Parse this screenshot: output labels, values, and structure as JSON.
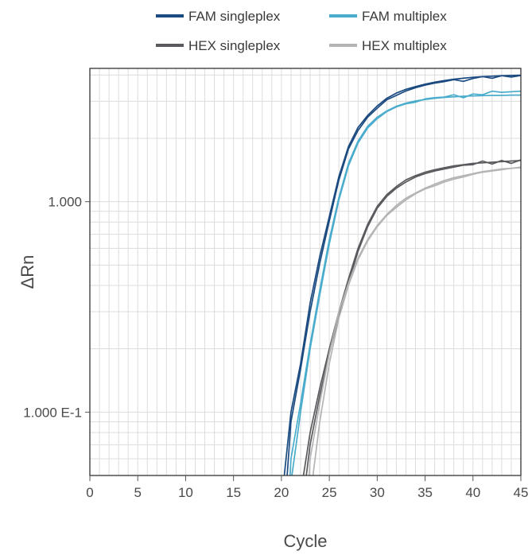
{
  "chart_data": {
    "type": "line",
    "title": "",
    "xlabel": "Cycle",
    "ylabel": "ΔRn",
    "x_scale": "linear",
    "y_scale": "log",
    "xlim": [
      0,
      45
    ],
    "ylim": [
      0.05,
      4.3
    ],
    "x_ticks": [
      0,
      5,
      10,
      15,
      20,
      25,
      30,
      35,
      40,
      45
    ],
    "y_ticks": [
      0.1,
      1.0
    ],
    "y_tick_labels": [
      "1.000 E-1",
      "1.000"
    ],
    "grid": true,
    "legend_position": "top",
    "series": [
      {
        "name": "FAM singleplex",
        "color": "#1a4a80",
        "replicates": [
          {
            "x": [
              20.3,
              21,
              22,
              23,
              24,
              25,
              26,
              27,
              28,
              29,
              30,
              31,
              32,
              33,
              34,
              35,
              36,
              37,
              38,
              39,
              40,
              41,
              42,
              43,
              44,
              45
            ],
            "y": [
              0.05,
              0.1,
              0.17,
              0.33,
              0.55,
              0.85,
              1.32,
              1.83,
              2.25,
              2.57,
              2.85,
              3.1,
              3.28,
              3.42,
              3.52,
              3.62,
              3.7,
              3.76,
              3.82,
              3.86,
              3.9,
              3.93,
              3.95,
              3.97,
              3.98,
              3.99
            ]
          },
          {
            "x": [
              20.6,
              21,
              22,
              23,
              24,
              25,
              26,
              27,
              28,
              29,
              30,
              31,
              32,
              33,
              34,
              35,
              36,
              37,
              38,
              39,
              40,
              41,
              42,
              43,
              44,
              45
            ],
            "y": [
              0.05,
              0.09,
              0.16,
              0.3,
              0.51,
              0.81,
              1.27,
              1.78,
              2.18,
              2.52,
              2.78,
              3.05,
              3.2,
              3.36,
              3.48,
              3.58,
              3.66,
              3.72,
              3.8,
              3.73,
              3.85,
              3.93,
              3.86,
              3.97,
              3.91,
              3.98
            ]
          }
        ]
      },
      {
        "name": "FAM multiplex",
        "color": "#4aaccc",
        "replicates": [
          {
            "x": [
              20.9,
              21,
              22,
              23,
              24,
              25,
              26,
              27,
              28,
              29,
              30,
              31,
              32,
              33,
              34,
              35,
              36,
              37,
              38,
              39,
              40,
              41,
              42,
              43,
              44,
              45
            ],
            "y": [
              0.05,
              0.06,
              0.11,
              0.21,
              0.38,
              0.66,
              1.05,
              1.52,
              1.94,
              2.28,
              2.52,
              2.7,
              2.84,
              2.94,
              3.01,
              3.06,
              3.1,
              3.13,
              3.15,
              3.17,
              3.18,
              3.19,
              3.2,
              3.2,
              3.21,
              3.21
            ]
          },
          {
            "x": [
              21.1,
              22,
              23,
              24,
              25,
              26,
              27,
              28,
              29,
              30,
              31,
              32,
              33,
              34,
              35,
              36,
              37,
              38,
              39,
              40,
              41,
              42,
              43,
              44,
              45
            ],
            "y": [
              0.05,
              0.1,
              0.2,
              0.36,
              0.63,
              1.02,
              1.48,
              1.9,
              2.24,
              2.48,
              2.68,
              2.82,
              2.92,
              2.97,
              3.08,
              3.12,
              3.14,
              3.22,
              3.12,
              3.25,
              3.22,
              3.35,
              3.31,
              3.33,
              3.35
            ]
          }
        ]
      },
      {
        "name": "HEX singleplex",
        "color": "#5a5a5e",
        "replicates": [
          {
            "x": [
              22.3,
              23,
              24,
              25,
              26,
              27,
              28,
              29,
              30,
              31,
              32,
              33,
              34,
              35,
              36,
              37,
              38,
              39,
              40,
              41,
              42,
              43,
              44,
              45
            ],
            "y": [
              0.05,
              0.08,
              0.13,
              0.2,
              0.3,
              0.43,
              0.6,
              0.78,
              0.95,
              1.08,
              1.18,
              1.27,
              1.33,
              1.38,
              1.42,
              1.45,
              1.48,
              1.5,
              1.52,
              1.53,
              1.54,
              1.55,
              1.56,
              1.57
            ]
          },
          {
            "x": [
              22.6,
              23,
              24,
              25,
              26,
              27,
              28,
              29,
              30,
              31,
              32,
              33,
              34,
              35,
              36,
              37,
              38,
              39,
              40,
              41,
              42,
              43,
              44,
              45
            ],
            "y": [
              0.05,
              0.07,
              0.12,
              0.19,
              0.29,
              0.41,
              0.58,
              0.76,
              0.93,
              1.06,
              1.16,
              1.24,
              1.31,
              1.36,
              1.4,
              1.43,
              1.46,
              1.49,
              1.5,
              1.56,
              1.51,
              1.57,
              1.52,
              1.58
            ]
          }
        ]
      },
      {
        "name": "HEX multiplex",
        "color": "#b4b4b4",
        "replicates": [
          {
            "x": [
              22.9,
              23,
              24,
              25,
              26,
              27,
              28,
              29,
              30,
              31,
              32,
              33,
              34,
              35,
              36,
              37,
              38,
              39,
              40,
              41,
              42,
              43,
              44,
              45
            ],
            "y": [
              0.05,
              0.06,
              0.11,
              0.19,
              0.3,
              0.41,
              0.54,
              0.66,
              0.77,
              0.87,
              0.96,
              1.04,
              1.1,
              1.16,
              1.21,
              1.26,
              1.3,
              1.33,
              1.36,
              1.39,
              1.41,
              1.43,
              1.44,
              1.45
            ]
          },
          {
            "x": [
              23.3,
              24,
              25,
              26,
              27,
              28,
              29,
              30,
              31,
              32,
              33,
              34,
              35,
              36,
              37,
              38,
              39,
              40,
              41,
              42,
              43,
              44,
              45
            ],
            "y": [
              0.05,
              0.09,
              0.17,
              0.28,
              0.4,
              0.53,
              0.65,
              0.76,
              0.86,
              0.94,
              1.02,
              1.09,
              1.15,
              1.19,
              1.24,
              1.28,
              1.31,
              1.35,
              1.38,
              1.4,
              1.42,
              1.44,
              1.46
            ]
          }
        ]
      }
    ]
  }
}
